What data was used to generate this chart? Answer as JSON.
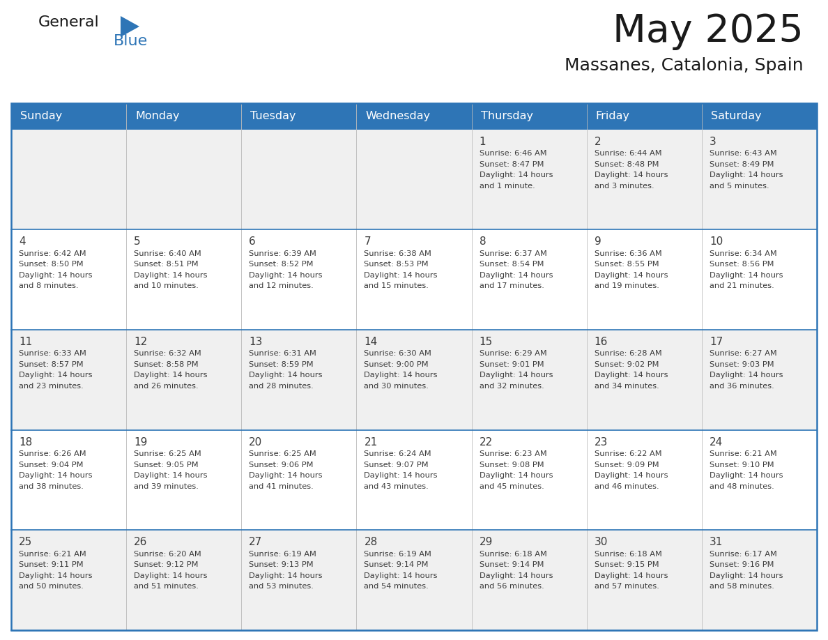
{
  "title": "May 2025",
  "subtitle": "Massanes, Catalonia, Spain",
  "header_bg": "#2E75B6",
  "header_text": "#FFFFFF",
  "row_bg_odd": "#F0F0F0",
  "row_bg_even": "#FFFFFF",
  "day_names": [
    "Sunday",
    "Monday",
    "Tuesday",
    "Wednesday",
    "Thursday",
    "Friday",
    "Saturday"
  ],
  "days": [
    {
      "day": 1,
      "col": 4,
      "row": 0,
      "sunrise": "6:46 AM",
      "sunset": "8:47 PM",
      "daylight": "14 hours",
      "daylight2": "and 1 minute."
    },
    {
      "day": 2,
      "col": 5,
      "row": 0,
      "sunrise": "6:44 AM",
      "sunset": "8:48 PM",
      "daylight": "14 hours",
      "daylight2": "and 3 minutes."
    },
    {
      "day": 3,
      "col": 6,
      "row": 0,
      "sunrise": "6:43 AM",
      "sunset": "8:49 PM",
      "daylight": "14 hours",
      "daylight2": "and 5 minutes."
    },
    {
      "day": 4,
      "col": 0,
      "row": 1,
      "sunrise": "6:42 AM",
      "sunset": "8:50 PM",
      "daylight": "14 hours",
      "daylight2": "and 8 minutes."
    },
    {
      "day": 5,
      "col": 1,
      "row": 1,
      "sunrise": "6:40 AM",
      "sunset": "8:51 PM",
      "daylight": "14 hours",
      "daylight2": "and 10 minutes."
    },
    {
      "day": 6,
      "col": 2,
      "row": 1,
      "sunrise": "6:39 AM",
      "sunset": "8:52 PM",
      "daylight": "14 hours",
      "daylight2": "and 12 minutes."
    },
    {
      "day": 7,
      "col": 3,
      "row": 1,
      "sunrise": "6:38 AM",
      "sunset": "8:53 PM",
      "daylight": "14 hours",
      "daylight2": "and 15 minutes."
    },
    {
      "day": 8,
      "col": 4,
      "row": 1,
      "sunrise": "6:37 AM",
      "sunset": "8:54 PM",
      "daylight": "14 hours",
      "daylight2": "and 17 minutes."
    },
    {
      "day": 9,
      "col": 5,
      "row": 1,
      "sunrise": "6:36 AM",
      "sunset": "8:55 PM",
      "daylight": "14 hours",
      "daylight2": "and 19 minutes."
    },
    {
      "day": 10,
      "col": 6,
      "row": 1,
      "sunrise": "6:34 AM",
      "sunset": "8:56 PM",
      "daylight": "14 hours",
      "daylight2": "and 21 minutes."
    },
    {
      "day": 11,
      "col": 0,
      "row": 2,
      "sunrise": "6:33 AM",
      "sunset": "8:57 PM",
      "daylight": "14 hours",
      "daylight2": "and 23 minutes."
    },
    {
      "day": 12,
      "col": 1,
      "row": 2,
      "sunrise": "6:32 AM",
      "sunset": "8:58 PM",
      "daylight": "14 hours",
      "daylight2": "and 26 minutes."
    },
    {
      "day": 13,
      "col": 2,
      "row": 2,
      "sunrise": "6:31 AM",
      "sunset": "8:59 PM",
      "daylight": "14 hours",
      "daylight2": "and 28 minutes."
    },
    {
      "day": 14,
      "col": 3,
      "row": 2,
      "sunrise": "6:30 AM",
      "sunset": "9:00 PM",
      "daylight": "14 hours",
      "daylight2": "and 30 minutes."
    },
    {
      "day": 15,
      "col": 4,
      "row": 2,
      "sunrise": "6:29 AM",
      "sunset": "9:01 PM",
      "daylight": "14 hours",
      "daylight2": "and 32 minutes."
    },
    {
      "day": 16,
      "col": 5,
      "row": 2,
      "sunrise": "6:28 AM",
      "sunset": "9:02 PM",
      "daylight": "14 hours",
      "daylight2": "and 34 minutes."
    },
    {
      "day": 17,
      "col": 6,
      "row": 2,
      "sunrise": "6:27 AM",
      "sunset": "9:03 PM",
      "daylight": "14 hours",
      "daylight2": "and 36 minutes."
    },
    {
      "day": 18,
      "col": 0,
      "row": 3,
      "sunrise": "6:26 AM",
      "sunset": "9:04 PM",
      "daylight": "14 hours",
      "daylight2": "and 38 minutes."
    },
    {
      "day": 19,
      "col": 1,
      "row": 3,
      "sunrise": "6:25 AM",
      "sunset": "9:05 PM",
      "daylight": "14 hours",
      "daylight2": "and 39 minutes."
    },
    {
      "day": 20,
      "col": 2,
      "row": 3,
      "sunrise": "6:25 AM",
      "sunset": "9:06 PM",
      "daylight": "14 hours",
      "daylight2": "and 41 minutes."
    },
    {
      "day": 21,
      "col": 3,
      "row": 3,
      "sunrise": "6:24 AM",
      "sunset": "9:07 PM",
      "daylight": "14 hours",
      "daylight2": "and 43 minutes."
    },
    {
      "day": 22,
      "col": 4,
      "row": 3,
      "sunrise": "6:23 AM",
      "sunset": "9:08 PM",
      "daylight": "14 hours",
      "daylight2": "and 45 minutes."
    },
    {
      "day": 23,
      "col": 5,
      "row": 3,
      "sunrise": "6:22 AM",
      "sunset": "9:09 PM",
      "daylight": "14 hours",
      "daylight2": "and 46 minutes."
    },
    {
      "day": 24,
      "col": 6,
      "row": 3,
      "sunrise": "6:21 AM",
      "sunset": "9:10 PM",
      "daylight": "14 hours",
      "daylight2": "and 48 minutes."
    },
    {
      "day": 25,
      "col": 0,
      "row": 4,
      "sunrise": "6:21 AM",
      "sunset": "9:11 PM",
      "daylight": "14 hours",
      "daylight2": "and 50 minutes."
    },
    {
      "day": 26,
      "col": 1,
      "row": 4,
      "sunrise": "6:20 AM",
      "sunset": "9:12 PM",
      "daylight": "14 hours",
      "daylight2": "and 51 minutes."
    },
    {
      "day": 27,
      "col": 2,
      "row": 4,
      "sunrise": "6:19 AM",
      "sunset": "9:13 PM",
      "daylight": "14 hours",
      "daylight2": "and 53 minutes."
    },
    {
      "day": 28,
      "col": 3,
      "row": 4,
      "sunrise": "6:19 AM",
      "sunset": "9:14 PM",
      "daylight": "14 hours",
      "daylight2": "and 54 minutes."
    },
    {
      "day": 29,
      "col": 4,
      "row": 4,
      "sunrise": "6:18 AM",
      "sunset": "9:14 PM",
      "daylight": "14 hours",
      "daylight2": "and 56 minutes."
    },
    {
      "day": 30,
      "col": 5,
      "row": 4,
      "sunrise": "6:18 AM",
      "sunset": "9:15 PM",
      "daylight": "14 hours",
      "daylight2": "and 57 minutes."
    },
    {
      "day": 31,
      "col": 6,
      "row": 4,
      "sunrise": "6:17 AM",
      "sunset": "9:16 PM",
      "daylight": "14 hours",
      "daylight2": "and 58 minutes."
    }
  ],
  "num_rows": 5,
  "num_cols": 7,
  "cell_border_color": "#2E75B6",
  "cell_inner_border": "#BBBBBB",
  "text_color": "#3a3a3a"
}
